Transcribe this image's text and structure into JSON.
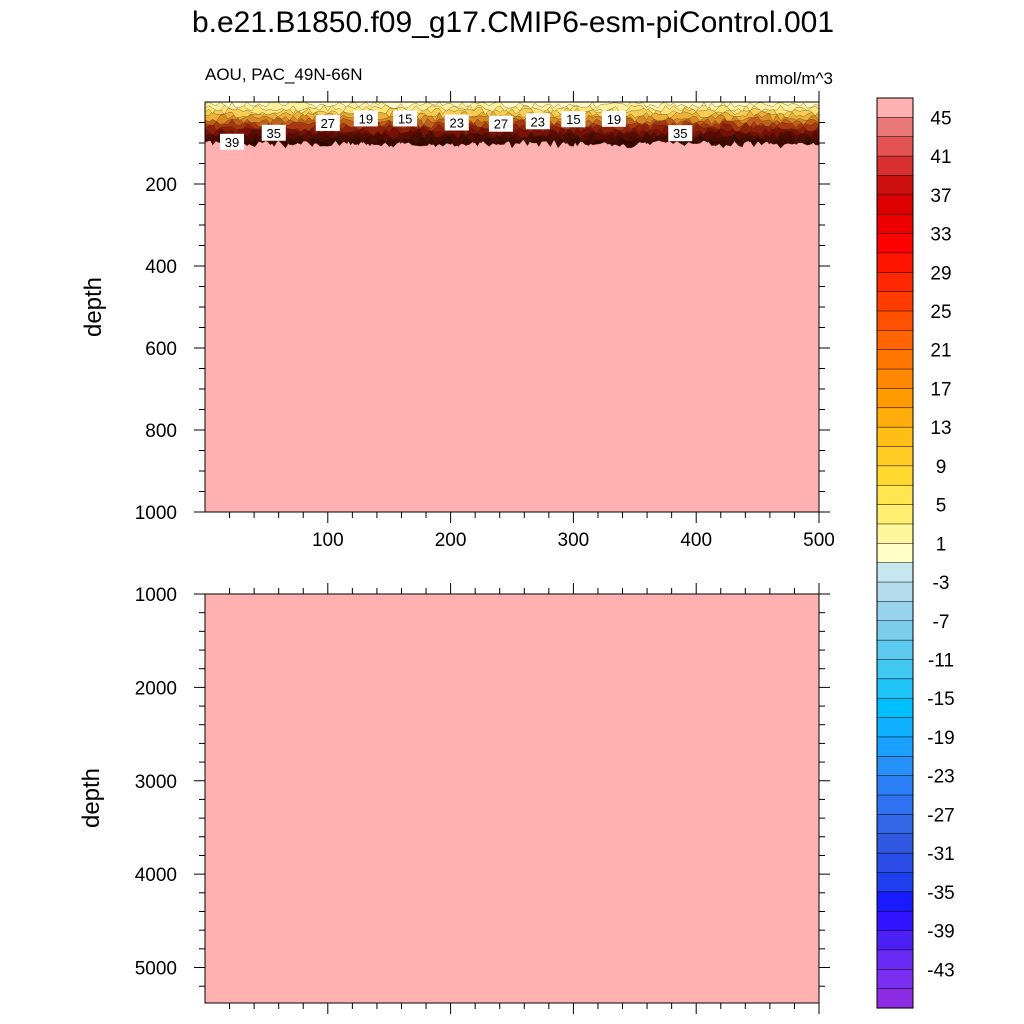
{
  "figure": {
    "title": "b.e21.B1850.f09_g17.CMIP6-esm-piControl.001",
    "left_subtitle": "AOU, PAC_49N-66N",
    "right_subtitle": "mmol/m^3"
  },
  "chart_data": [
    {
      "type": "heatmap",
      "panel": "upper",
      "xlabel": "",
      "ylabel": "depth",
      "xlim": [
        0,
        500
      ],
      "ylim": [
        1000,
        0
      ],
      "xticks": [
        100,
        200,
        300,
        400,
        500
      ],
      "xtick_labels": [
        "100",
        "200",
        "300",
        "400",
        "500"
      ],
      "yticks": [
        200,
        400,
        600,
        800,
        1000
      ],
      "ytick_labels": [
        "200",
        "400",
        "600",
        "800",
        "1000"
      ],
      "fill_below_surface": 47,
      "surface_layer_bottom_depth": 100,
      "contour_labels": [
        {
          "text": "39",
          "x": 22,
          "y": 97
        },
        {
          "text": "35",
          "x": 56,
          "y": 75
        },
        {
          "text": "27",
          "x": 100,
          "y": 51
        },
        {
          "text": "19",
          "x": 131,
          "y": 40
        },
        {
          "text": "15",
          "x": 163,
          "y": 40
        },
        {
          "text": "23",
          "x": 205,
          "y": 50
        },
        {
          "text": "27",
          "x": 241,
          "y": 53
        },
        {
          "text": "23",
          "x": 271,
          "y": 47
        },
        {
          "text": "15",
          "x": 300,
          "y": 42
        },
        {
          "text": "19",
          "x": 333,
          "y": 41
        },
        {
          "text": "35",
          "x": 387,
          "y": 76
        }
      ],
      "grid": false
    },
    {
      "type": "heatmap",
      "panel": "lower",
      "xlabel": "",
      "ylabel": "depth",
      "xlim": [
        0,
        500
      ],
      "ylim": [
        5380,
        1000
      ],
      "xticks": [
        100,
        200,
        300,
        400,
        500
      ],
      "yticks": [
        1000,
        2000,
        3000,
        4000,
        5000
      ],
      "ytick_labels": [
        "1000",
        "2000",
        "3000",
        "4000",
        "5000"
      ],
      "fill_value": 47,
      "grid": false
    }
  ],
  "colorbar": {
    "levels": [
      -45,
      -43,
      -41,
      -39,
      -37,
      -35,
      -33,
      -31,
      -29,
      -27,
      -25,
      -23,
      -21,
      -19,
      -17,
      -15,
      -13,
      -11,
      -9,
      -7,
      -5,
      -3,
      -1,
      1,
      3,
      5,
      7,
      9,
      11,
      13,
      15,
      17,
      19,
      21,
      23,
      25,
      27,
      29,
      31,
      33,
      35,
      37,
      39,
      41,
      43,
      45
    ],
    "labels": [
      "45",
      "41",
      "37",
      "33",
      "29",
      "25",
      "21",
      "17",
      "13",
      "9",
      "5",
      "1",
      "-3",
      "-7",
      "-11",
      "-15",
      "-19",
      "-23",
      "-27",
      "-31",
      "-35",
      "-39",
      "-43"
    ],
    "colors": [
      "#8b2be2",
      "#7a2ef0",
      "#6a2cf5",
      "#4c1ff5",
      "#3312ff",
      "#1a1aff",
      "#2040f0",
      "#2a4de8",
      "#3358e0",
      "#3366e6",
      "#2f72ef",
      "#2b7ff5",
      "#2590fa",
      "#1aa0ff",
      "#0fb0ff",
      "#00bfff",
      "#20c4f8",
      "#40c8f0",
      "#5ccaf0",
      "#7acdeb",
      "#98d4ee",
      "#b4dcee",
      "#c8e6f2",
      "#ffffc8",
      "#fff59a",
      "#ffee70",
      "#ffe650",
      "#ffd830",
      "#ffcc25",
      "#ffbe18",
      "#ffac0c",
      "#ff9a00",
      "#ff8800",
      "#ff7600",
      "#ff6400",
      "#ff5000",
      "#ff3c00",
      "#ff2800",
      "#ff1400",
      "#ff0000",
      "#ee0000",
      "#dd0000",
      "#cc1010",
      "#d83030",
      "#e45454",
      "#eb7878",
      "#ffb0b0"
    ]
  }
}
